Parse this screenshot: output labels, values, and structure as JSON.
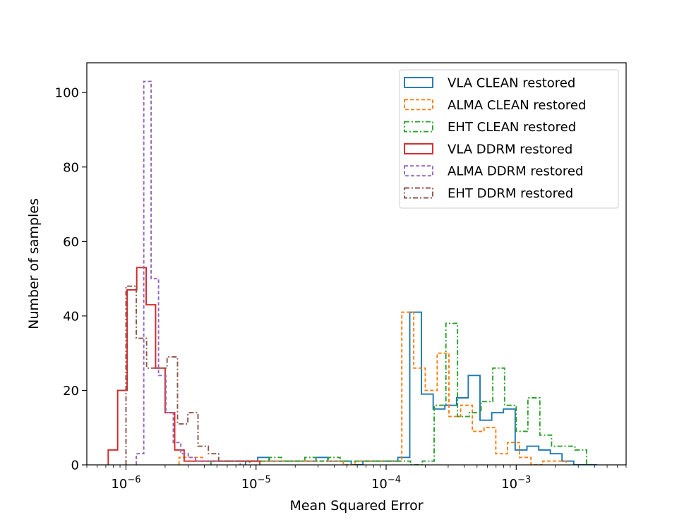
{
  "chart_data": {
    "type": "histogram",
    "title": "",
    "xlabel": "Mean Squared Error",
    "ylabel": "Number of samples",
    "xscale": "log",
    "xlim": [
      5e-07,
      0.007
    ],
    "ylim": [
      0,
      108
    ],
    "legend_position": "top-right",
    "grid": false,
    "xticks": [
      {
        "label_base": "10",
        "label_exp": "−6",
        "value": 1e-06
      },
      {
        "label_base": "10",
        "label_exp": "−5",
        "value": 1e-05
      },
      {
        "label_base": "10",
        "label_exp": "−4",
        "value": 0.0001
      },
      {
        "label_base": "10",
        "label_exp": "−3",
        "value": 0.001
      }
    ],
    "yticks": [
      {
        "label": "0",
        "value": 0
      },
      {
        "label": "20",
        "value": 20
      },
      {
        "label": "40",
        "value": 40
      },
      {
        "label": "60",
        "value": 60
      },
      {
        "label": "80",
        "value": 80
      },
      {
        "label": "100",
        "value": 100
      }
    ],
    "series": [
      {
        "name": "VLA CLEAN restored",
        "color": "#1f77b4",
        "dash": "solid",
        "edges": [
          8.3e-06,
          1.03e-05,
          1.26e-05,
          1.55e-05,
          1.91e-05,
          2.35e-05,
          2.89e-05,
          3.56e-05,
          4.38e-05,
          5.39e-05,
          6.63e-05,
          8.16e-05,
          0.0001,
          0.000123,
          0.000152,
          0.000187,
          0.00023,
          0.000283,
          0.000348,
          0.000428,
          0.000527,
          0.000649,
          0.000798,
          0.000982,
          0.00121,
          0.00149,
          0.00183,
          0.00225,
          0.00277,
          0.00341,
          0.0042
        ],
        "counts": [
          1,
          2,
          1,
          1,
          1,
          1,
          2,
          1,
          1,
          0,
          1,
          1,
          1,
          2,
          41,
          19,
          15,
          16,
          18,
          24,
          12,
          14,
          15,
          4,
          5,
          4,
          3,
          1,
          0,
          0
        ]
      },
      {
        "name": "ALMA CLEAN restored",
        "color": "#ff7f0e",
        "dash": "5,3",
        "edges": [
          2.56e-06,
          3.15e-06,
          3.88e-06,
          4.77e-06,
          5.87e-06,
          7.23e-06,
          8.9e-06,
          1.1e-05,
          1.35e-05,
          1.66e-05,
          2.04e-05,
          2.51e-05,
          3.09e-05,
          3.81e-05,
          4.69e-05,
          5.77e-05,
          7.1e-05,
          8.74e-05,
          0.000108,
          0.000132,
          0.000163,
          0.0002,
          0.000247,
          0.000304,
          0.000374,
          0.00046,
          0.000566,
          0.000697,
          0.000858,
          0.00106,
          0.0013,
          0.0016,
          0.00197,
          0.00242
        ],
        "counts": [
          2,
          2,
          1,
          1,
          1,
          1,
          1,
          1,
          1,
          1,
          1,
          1,
          1,
          1,
          0,
          1,
          1,
          1,
          1,
          41,
          26,
          20,
          30,
          13,
          16,
          9,
          10,
          3,
          6,
          2,
          0,
          1,
          1
        ]
      },
      {
        "name": "EHT CLEAN restored",
        "color": "#2ca02c",
        "dash": "7,3,2,3",
        "edges": [
          4.5e-06,
          5.54e-06,
          6.82e-06,
          8.4e-06,
          1.03e-05,
          1.27e-05,
          1.57e-05,
          1.93e-05,
          2.37e-05,
          2.92e-05,
          3.6e-05,
          4.43e-05,
          5.45e-05,
          6.71e-05,
          8.26e-05,
          0.000102,
          0.000125,
          0.000154,
          0.00019,
          0.000234,
          0.000288,
          0.000354,
          0.000436,
          0.000537,
          0.000661,
          0.000814,
          0.001,
          0.00123,
          0.00152,
          0.00187,
          0.0023,
          0.00283,
          0.00348
        ],
        "counts": [
          1,
          1,
          1,
          1,
          1,
          2,
          1,
          1,
          2,
          1,
          2,
          1,
          1,
          1,
          1,
          1,
          1,
          0,
          1,
          16,
          38,
          13,
          14,
          17,
          26,
          16,
          9,
          18,
          8,
          5,
          5,
          4
        ]
      },
      {
        "name": "VLA DDRM restored",
        "color": "#d62728",
        "dash": "solid",
        "edges": [
          7.3e-07,
          8.63e-07,
          1.02e-06,
          1.21e-06,
          1.43e-06,
          1.69e-06,
          2e-06,
          2.37e-06,
          2.8e-06,
          3.31e-06,
          3.91e-06,
          4.63e-06,
          5.47e-06,
          6.47e-06,
          7.66e-06,
          9.06e-06,
          1.07e-05
        ],
        "counts": [
          4,
          20,
          47,
          53,
          43,
          26,
          14,
          4,
          1,
          1,
          1,
          1,
          1,
          1,
          1,
          1
        ]
      },
      {
        "name": "ALMA DDRM restored",
        "color": "#9467bd",
        "dash": "5,3",
        "edges": [
          1.2e-06,
          1.37e-06,
          1.56e-06,
          1.78e-06,
          2.03e-06,
          2.31e-06,
          2.64e-06,
          3.01e-06,
          3.43e-06,
          3.91e-06,
          4.46e-06,
          5.09e-06,
          5.8e-06,
          6.62e-06,
          7.55e-06
        ],
        "counts": [
          3,
          103,
          50,
          24,
          14,
          6,
          3,
          2,
          1,
          1,
          1,
          1,
          1,
          1
        ]
      },
      {
        "name": "EHT DDRM restored",
        "color": "#8c564b",
        "dash": "7,3,2,3",
        "edges": [
          1e-06,
          1.2e-06,
          1.44e-06,
          1.73e-06,
          2.07e-06,
          2.49e-06,
          2.99e-06,
          3.58e-06,
          4.3e-06,
          5.16e-06,
          6.19e-06,
          7.43e-06,
          8.92e-06
        ],
        "counts": [
          48,
          34,
          26,
          26,
          29,
          11,
          14,
          5,
          3,
          1,
          1,
          1
        ]
      }
    ]
  }
}
